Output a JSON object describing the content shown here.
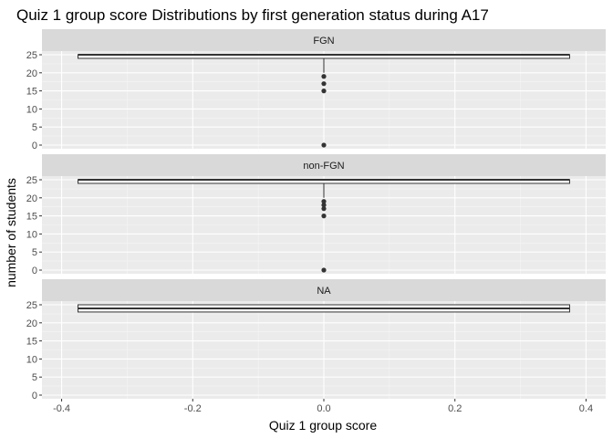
{
  "chart_data": {
    "type": "boxplot",
    "title": "Quiz 1 group score Distributions by first generation status during A17",
    "xlabel": "Quiz 1 group score",
    "ylabel": "number of students",
    "xlim": [
      -0.4,
      0.4
    ],
    "ylim": [
      0,
      25
    ],
    "x_ticks": [
      "-0.4",
      "-0.2",
      "0.0",
      "0.2",
      "0.4"
    ],
    "y_ticks": [
      "0",
      "5",
      "10",
      "15",
      "20",
      "25"
    ],
    "grid": true,
    "panels": [
      {
        "label": "FGN",
        "box": {
          "xmin": -0.375,
          "xmax": 0.375,
          "q1": 24,
          "median": 25,
          "q3": 25,
          "whisker_low": 20,
          "whisker_high": 25
        },
        "outliers": [
          0,
          15,
          17,
          19
        ]
      },
      {
        "label": "non-FGN",
        "box": {
          "xmin": -0.375,
          "xmax": 0.375,
          "q1": 24,
          "median": 25,
          "q3": 25,
          "whisker_low": 20,
          "whisker_high": 25
        },
        "outliers": [
          0,
          15,
          17,
          18,
          19
        ]
      },
      {
        "label": "NA",
        "box": {
          "xmin": -0.375,
          "xmax": 0.375,
          "q1": 23,
          "median": 24,
          "q3": 25,
          "whisker_low": 23,
          "whisker_high": 25
        },
        "outliers": []
      }
    ]
  }
}
